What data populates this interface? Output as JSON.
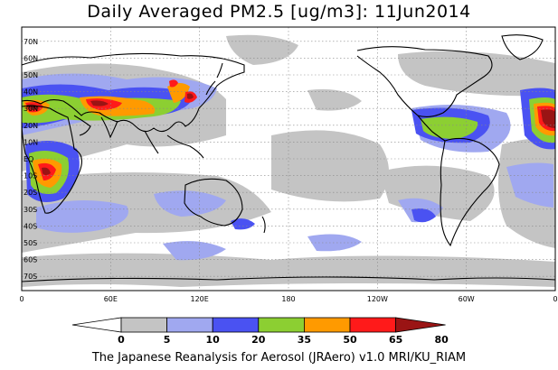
{
  "title": "Daily Averaged PM2.5 [ug/m3]: 11Jun2014",
  "footer": "The Japanese Reanalysis for Aerosol (JRAero) v1.0 MRI/KU_RIAM",
  "map": {
    "lat_labels": [
      "70N",
      "60N",
      "50N",
      "40N",
      "30N",
      "20N",
      "10N",
      "EQ",
      "10S",
      "20S",
      "30S",
      "40S",
      "50S",
      "60S",
      "70S"
    ],
    "lon_labels": [
      "0",
      "60E",
      "120E",
      "180",
      "120W",
      "60W",
      "0"
    ]
  },
  "colorbar": {
    "ticks": [
      "0",
      "5",
      "10",
      "20",
      "35",
      "50",
      "65",
      "80"
    ],
    "colors": [
      "#ffffff",
      "#c4c4c4",
      "#a0a8f0",
      "#4a52f2",
      "#8ccf32",
      "#ff9a00",
      "#ff1a1a",
      "#9a1414"
    ]
  },
  "palette": {
    "land": "#000000",
    "grid": "#888888",
    "background": "#ffffff"
  }
}
